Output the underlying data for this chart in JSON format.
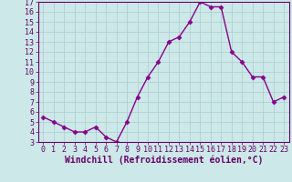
{
  "x": [
    0,
    1,
    2,
    3,
    4,
    5,
    6,
    7,
    8,
    9,
    10,
    11,
    12,
    13,
    14,
    15,
    16,
    17,
    18,
    19,
    20,
    21,
    22,
    23
  ],
  "y": [
    5.5,
    5.0,
    4.5,
    4.0,
    4.0,
    4.5,
    3.5,
    3.0,
    5.0,
    7.5,
    9.5,
    11.0,
    13.0,
    13.5,
    15.0,
    17.0,
    16.5,
    16.5,
    12.0,
    11.0,
    9.5,
    9.5,
    7.0,
    7.5
  ],
  "line_color": "#880088",
  "marker": "D",
  "marker_size": 2.5,
  "bg_color": "#cce8e8",
  "grid_color": "#aacccc",
  "xlabel": "Windchill (Refroidissement éolien,°C)",
  "xlabel_fontsize": 7,
  "xlim": [
    -0.5,
    23.5
  ],
  "ylim": [
    3,
    17
  ],
  "yticks": [
    3,
    4,
    5,
    6,
    7,
    8,
    9,
    10,
    11,
    12,
    13,
    14,
    15,
    16,
    17
  ],
  "xticks": [
    0,
    1,
    2,
    3,
    4,
    5,
    6,
    7,
    8,
    9,
    10,
    11,
    12,
    13,
    14,
    15,
    16,
    17,
    18,
    19,
    20,
    21,
    22,
    23
  ],
  "tick_fontsize": 6,
  "line_width": 1.0,
  "text_color": "#660066"
}
